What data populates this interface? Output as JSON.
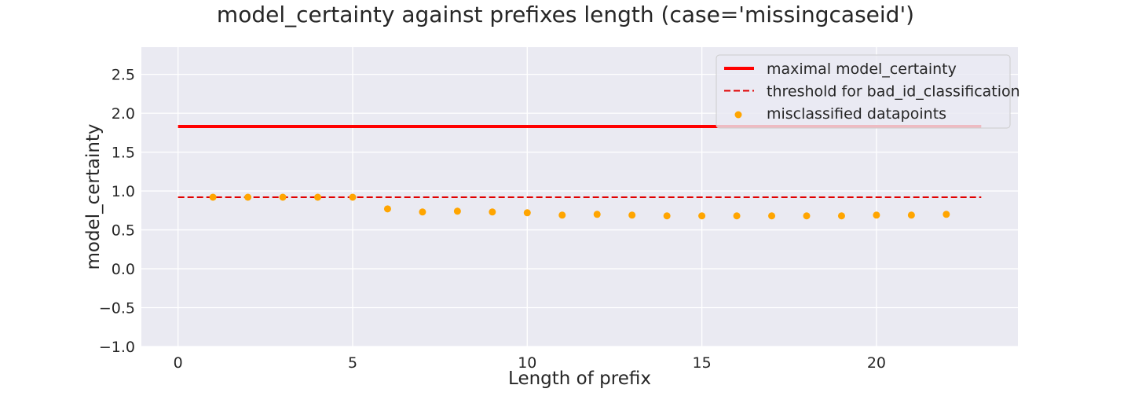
{
  "chart_data": {
    "type": "scatter",
    "title": "model_certainty against prefixes length (case='missingcaseid')",
    "xlabel": "Length of prefix",
    "ylabel": "model_certainty",
    "xlim": [
      -1.05,
      24.05
    ],
    "ylim": [
      -1.0,
      2.85
    ],
    "x_ticks": [
      0,
      5,
      10,
      15,
      20
    ],
    "y_ticks": [
      -1.0,
      -0.5,
      0.0,
      0.5,
      1.0,
      1.5,
      2.0,
      2.5
    ],
    "x_tick_labels": [
      "0",
      "5",
      "10",
      "15",
      "20"
    ],
    "y_tick_labels": [
      "−1.0",
      "−0.5",
      "0.0",
      "0.5",
      "1.0",
      "1.5",
      "2.0",
      "2.5"
    ],
    "grid": true,
    "legend_placement": "top-right",
    "series": [
      {
        "name": "maximal model_certainty",
        "kind": "line",
        "style": "solid",
        "color": "#ff0000",
        "x": [
          0,
          23
        ],
        "y": [
          1.83,
          1.83
        ]
      },
      {
        "name": "threshold for bad_id_classification",
        "kind": "line",
        "style": "dashed",
        "color": "#e00000",
        "x": [
          0,
          23
        ],
        "y": [
          0.92,
          0.92
        ]
      },
      {
        "name": "misclassified datapoints",
        "kind": "scatter",
        "color": "#ffa500",
        "x": [
          1,
          2,
          3,
          4,
          5,
          6,
          7,
          8,
          9,
          10,
          11,
          12,
          13,
          14,
          15,
          16,
          17,
          18,
          19,
          20,
          21,
          22
        ],
        "y": [
          0.92,
          0.92,
          0.92,
          0.92,
          0.92,
          0.77,
          0.73,
          0.74,
          0.73,
          0.72,
          0.69,
          0.7,
          0.69,
          0.68,
          0.68,
          0.68,
          0.68,
          0.68,
          0.68,
          0.69,
          0.69,
          0.7
        ]
      }
    ],
    "colors": {
      "plot_background": "#eaeaf2",
      "grid": "#ffffff",
      "text": "#262626"
    }
  }
}
